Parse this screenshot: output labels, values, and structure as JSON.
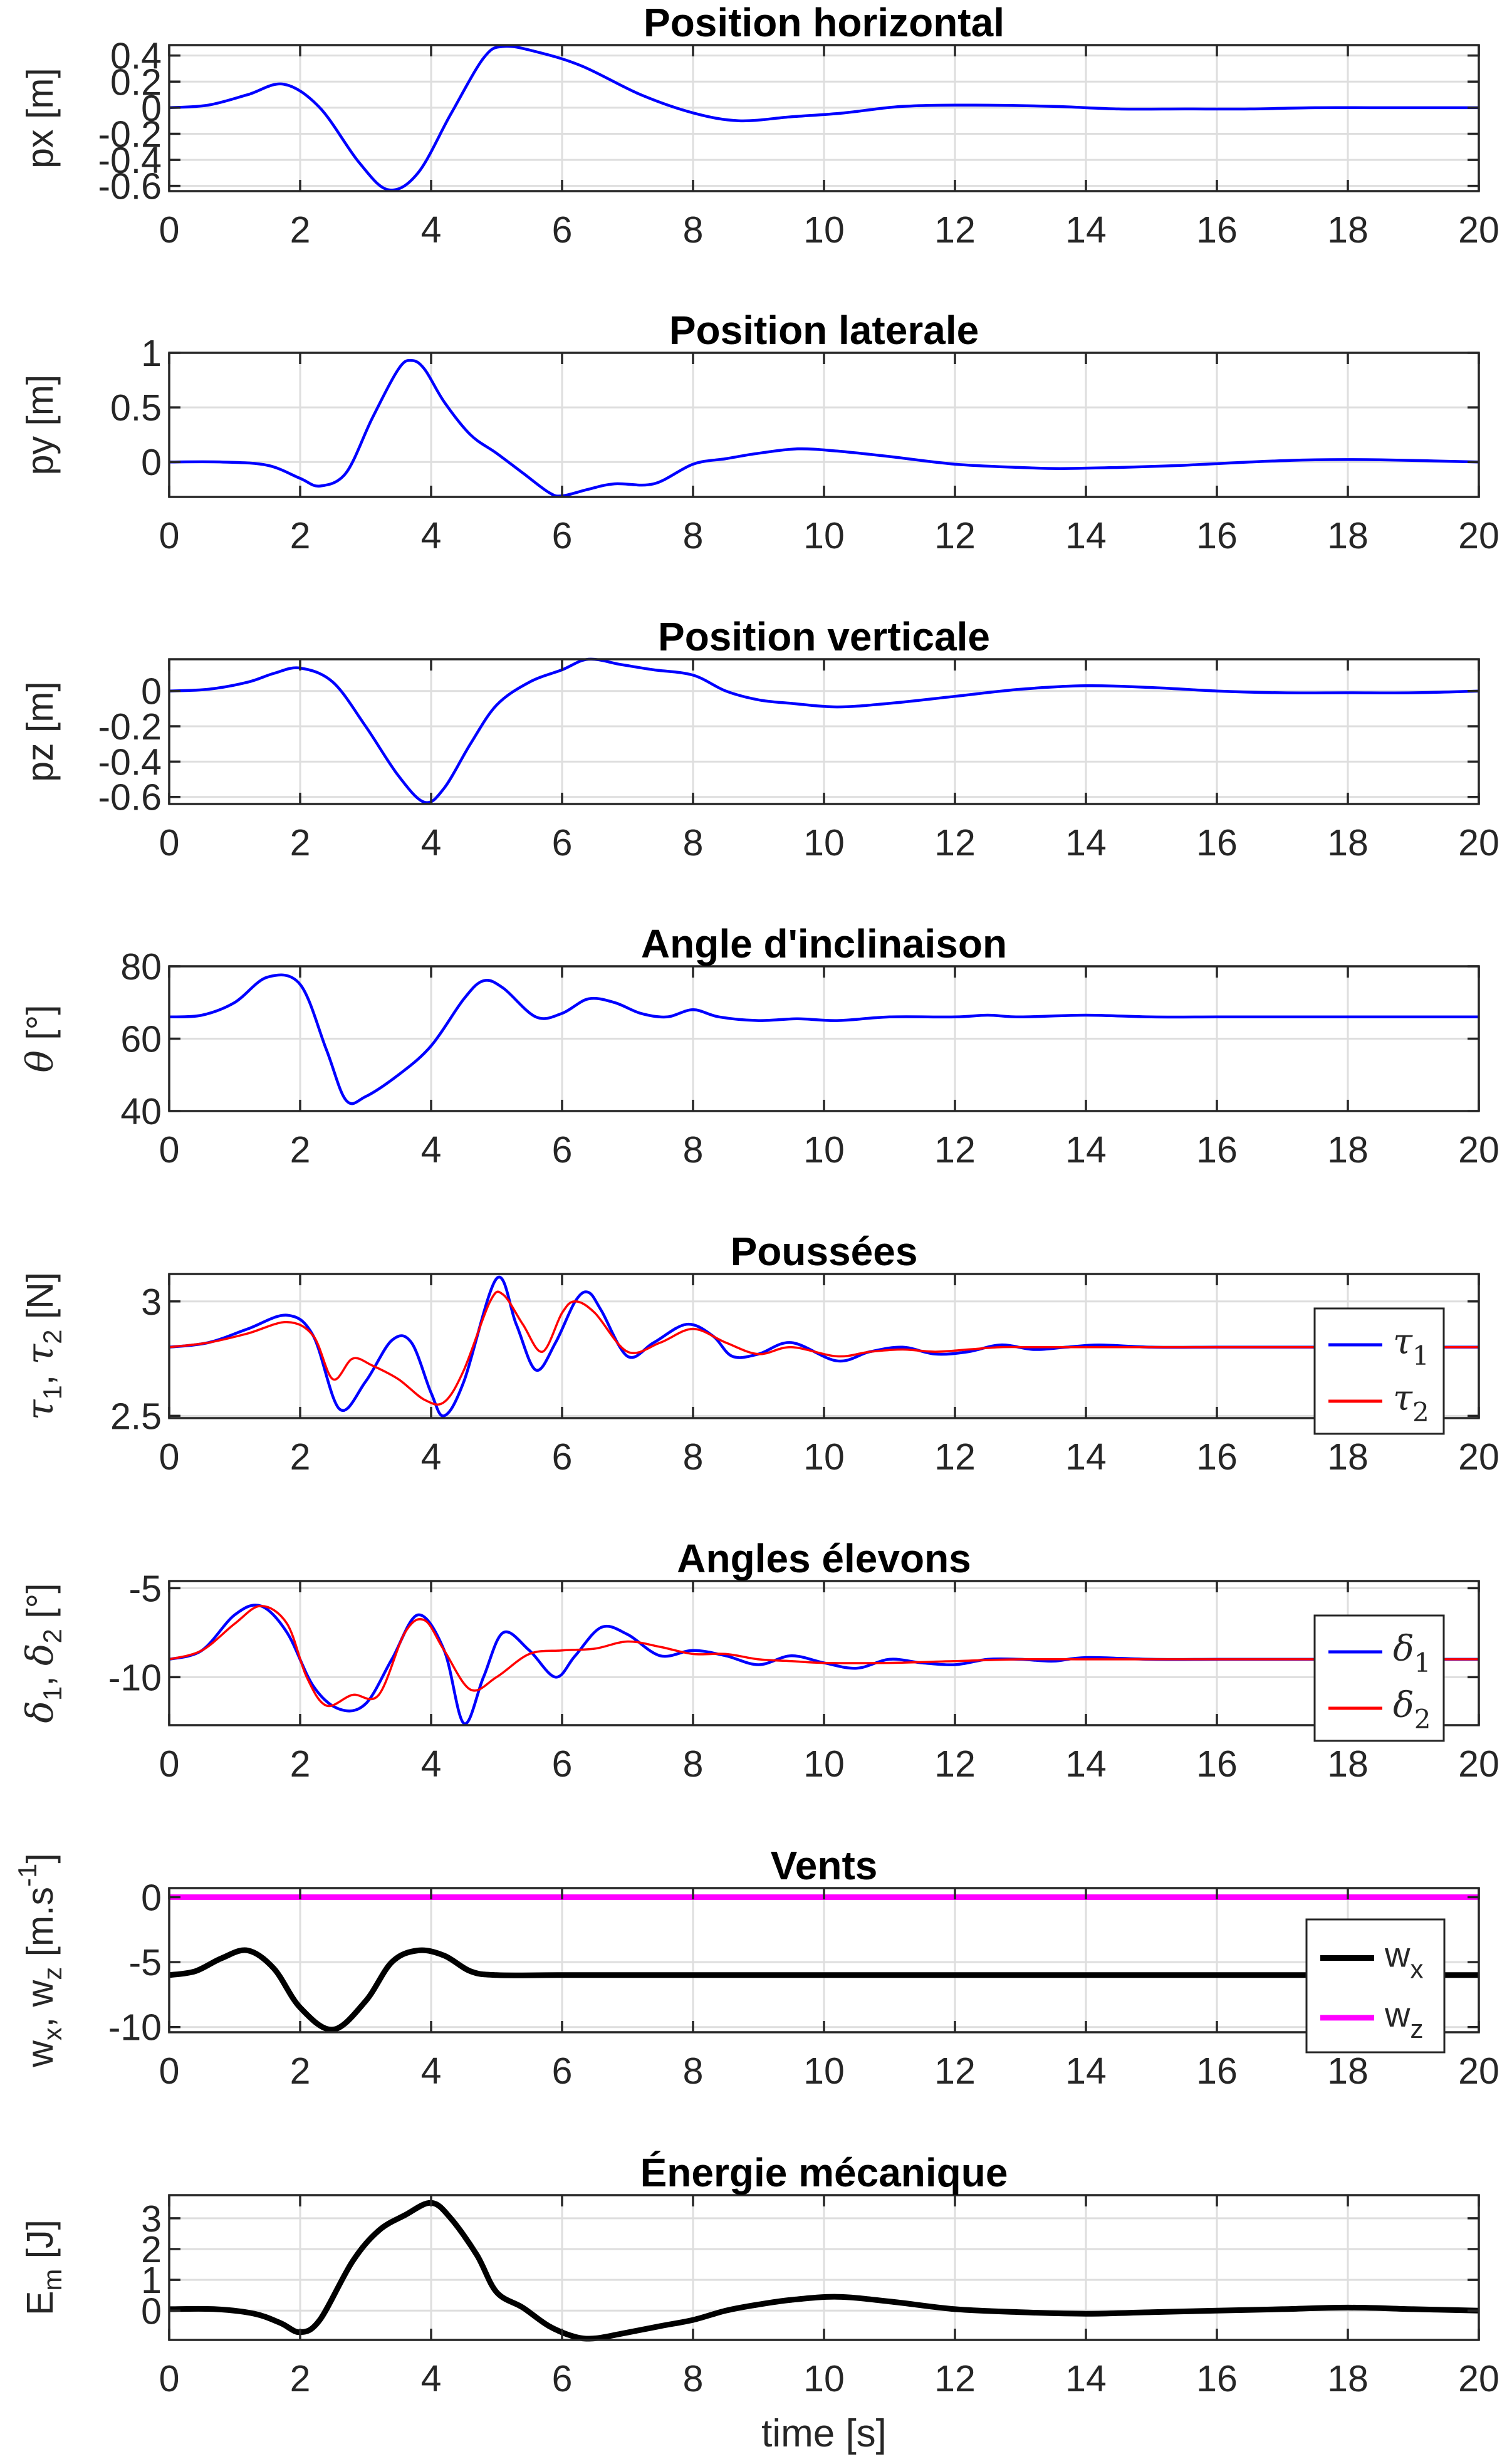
{
  "chart_data": [
    {
      "type": "line",
      "title": "Position horizontal",
      "ylabel": "px [m]",
      "xlabel": "",
      "xlim": [
        0,
        20
      ],
      "ylim": [
        -0.64,
        0.48
      ],
      "xticks": [
        "0",
        "2",
        "4",
        "6",
        "8",
        "10",
        "12",
        "14",
        "16",
        "18",
        "20"
      ],
      "yticks": [
        0.4,
        0.2,
        0,
        -0.2,
        -0.4,
        -0.6
      ],
      "ytick_labels": [
        "0.4",
        "0.2",
        "0",
        "-0.2",
        "-0.4",
        "-0.6"
      ],
      "grid": true,
      "series": [
        {
          "color": "#0000ff",
          "width": 4.5,
          "x": [
            0,
            0.6,
            1.2,
            1.75,
            2.3,
            2.9,
            3.35,
            3.8,
            4.3,
            4.8,
            5.1,
            5.6,
            6.3,
            7.2,
            8.0,
            8.7,
            9.5,
            10.3,
            11.2,
            12.3,
            13.5,
            14.5,
            15.5,
            16.5,
            17.5,
            18.5,
            20
          ],
          "y": [
            0,
            0.02,
            0.1,
            0.18,
            0.0,
            -0.42,
            -0.63,
            -0.5,
            -0.05,
            0.38,
            0.47,
            0.43,
            0.32,
            0.1,
            -0.04,
            -0.1,
            -0.07,
            -0.04,
            0.01,
            0.02,
            0.01,
            -0.01,
            -0.01,
            -0.01,
            0.0,
            0.0,
            0.0
          ]
        }
      ]
    },
    {
      "type": "line",
      "title": "Position laterale",
      "ylabel": "py [m]",
      "xlabel": "",
      "xlim": [
        0,
        20
      ],
      "ylim": [
        -0.32,
        1.0
      ],
      "xticks": [
        "0",
        "2",
        "4",
        "6",
        "8",
        "10",
        "12",
        "14",
        "16",
        "18",
        "20"
      ],
      "yticks": [
        1,
        0.5,
        0
      ],
      "ytick_labels": [
        "1",
        "0.5",
        "0"
      ],
      "grid": true,
      "series": [
        {
          "color": "#0000ff",
          "width": 4.5,
          "x": [
            0,
            0.8,
            1.5,
            2.0,
            2.3,
            2.7,
            3.1,
            3.5,
            3.7,
            3.9,
            4.2,
            4.6,
            5.0,
            5.4,
            5.8,
            6.0,
            6.4,
            6.8,
            7.4,
            8.0,
            8.5,
            9.0,
            9.6,
            10.2,
            11,
            12,
            13,
            13.6,
            14.5,
            15.5,
            16.5,
            17.5,
            18.5,
            20
          ],
          "y": [
            0,
            0,
            -0.03,
            -0.15,
            -0.22,
            -0.1,
            0.4,
            0.85,
            0.93,
            0.85,
            0.55,
            0.25,
            0.08,
            -0.1,
            -0.28,
            -0.31,
            -0.25,
            -0.2,
            -0.2,
            -0.02,
            0.03,
            0.08,
            0.12,
            0.1,
            0.05,
            -0.02,
            -0.05,
            -0.06,
            -0.05,
            -0.03,
            0.0,
            0.02,
            0.02,
            0.0
          ]
        }
      ]
    },
    {
      "type": "line",
      "title": "Position verticale",
      "ylabel": "pz [m]",
      "xlabel": "",
      "xlim": [
        0,
        20
      ],
      "ylim": [
        -0.64,
        0.18
      ],
      "xticks": [
        "0",
        "2",
        "4",
        "6",
        "8",
        "10",
        "12",
        "14",
        "16",
        "18",
        "20"
      ],
      "yticks": [
        0,
        -0.2,
        -0.4,
        -0.6
      ],
      "ytick_labels": [
        "0",
        "-0.2",
        "-0.4",
        "-0.6"
      ],
      "grid": true,
      "series": [
        {
          "color": "#0000ff",
          "width": 4.5,
          "x": [
            0,
            0.6,
            1.2,
            1.6,
            2.0,
            2.5,
            3.0,
            3.5,
            3.9,
            4.2,
            4.6,
            5.0,
            5.5,
            6.0,
            6.4,
            6.9,
            7.4,
            8.0,
            8.5,
            9.0,
            9.5,
            10.2,
            11,
            12,
            13,
            14,
            15,
            16,
            17,
            18,
            19,
            20
          ],
          "y": [
            0,
            0.01,
            0.05,
            0.1,
            0.13,
            0.05,
            -0.2,
            -0.48,
            -0.63,
            -0.55,
            -0.3,
            -0.08,
            0.05,
            0.12,
            0.18,
            0.15,
            0.12,
            0.09,
            0.0,
            -0.05,
            -0.07,
            -0.09,
            -0.07,
            -0.03,
            0.01,
            0.03,
            0.02,
            0.0,
            -0.01,
            -0.01,
            -0.01,
            0.0
          ]
        }
      ]
    },
    {
      "type": "line",
      "title": "Angle d'inclinaison",
      "ylabel": "θ [°]",
      "xlabel": "",
      "xlim": [
        0,
        20
      ],
      "ylim": [
        40,
        80
      ],
      "xticks": [
        "0",
        "2",
        "4",
        "6",
        "8",
        "10",
        "12",
        "14",
        "16",
        "18",
        "20"
      ],
      "yticks": [
        80,
        60,
        40
      ],
      "ytick_labels": [
        "80",
        "60",
        "40"
      ],
      "grid": true,
      "series": [
        {
          "color": "#0000ff",
          "width": 4.5,
          "x": [
            0,
            0.5,
            1.0,
            1.5,
            2.0,
            2.4,
            2.7,
            3.0,
            3.5,
            4.0,
            4.5,
            4.8,
            5.1,
            5.6,
            6.0,
            6.4,
            6.8,
            7.2,
            7.6,
            8.0,
            8.4,
            9.0,
            9.6,
            10.2,
            11,
            12,
            12.5,
            13,
            14,
            15,
            16,
            17,
            18,
            19,
            20
          ],
          "y": [
            66,
            66.5,
            70,
            77,
            75,
            57,
            43,
            44,
            50,
            58,
            71,
            76,
            74,
            66,
            67,
            71,
            70,
            67,
            66,
            68,
            66,
            65,
            65.5,
            65,
            66,
            66,
            66.5,
            66,
            66.5,
            66,
            66,
            66,
            66,
            66,
            66
          ]
        }
      ]
    },
    {
      "type": "line",
      "title": "Poussées",
      "ylabel": "τ1, τ2 [N]",
      "xlabel": "",
      "xlim": [
        0,
        20
      ],
      "ylim": [
        2.49,
        3.12
      ],
      "xticks": [
        "0",
        "2",
        "4",
        "6",
        "8",
        "10",
        "12",
        "14",
        "16",
        "18",
        "20"
      ],
      "yticks": [
        3,
        2.5
      ],
      "ytick_labels": [
        "3",
        "2.5"
      ],
      "grid": true,
      "legend": {
        "position": "bottom-right",
        "entries": [
          "τ1",
          "τ2"
        ]
      },
      "series": [
        {
          "name": "τ1",
          "color": "#0000ff",
          "width": 4.5,
          "x": [
            0,
            0.6,
            1.2,
            1.8,
            2.2,
            2.6,
            3.0,
            3.4,
            3.7,
            4.0,
            4.2,
            4.5,
            5.0,
            5.3,
            5.6,
            5.9,
            6.2,
            6.4,
            6.6,
            7.0,
            7.4,
            7.9,
            8.3,
            8.6,
            9.0,
            9.5,
            10.2,
            10.7,
            11.2,
            11.7,
            12.2,
            12.7,
            13.2,
            13.7,
            14.2,
            15,
            16,
            17,
            18,
            19,
            20
          ],
          "y": [
            2.8,
            2.82,
            2.88,
            2.94,
            2.85,
            2.53,
            2.65,
            2.83,
            2.82,
            2.6,
            2.5,
            2.65,
            3.1,
            2.9,
            2.7,
            2.82,
            3.0,
            3.04,
            2.96,
            2.76,
            2.82,
            2.9,
            2.85,
            2.76,
            2.77,
            2.82,
            2.74,
            2.78,
            2.8,
            2.77,
            2.78,
            2.81,
            2.79,
            2.8,
            2.81,
            2.8,
            2.8,
            2.8,
            2.8,
            2.8,
            2.8
          ]
        },
        {
          "name": "τ2",
          "color": "#ff0000",
          "width": 3.5,
          "x": [
            0,
            0.6,
            1.2,
            1.8,
            2.2,
            2.5,
            2.8,
            3.1,
            3.5,
            3.9,
            4.2,
            4.5,
            4.9,
            5.1,
            5.4,
            5.7,
            6.0,
            6.2,
            6.5,
            7.0,
            7.5,
            8.0,
            8.5,
            9.0,
            9.5,
            10.2,
            10.7,
            11.2,
            11.7,
            12.2,
            12.7,
            13.2,
            14,
            15,
            16,
            17,
            18,
            19,
            20
          ],
          "y": [
            2.8,
            2.82,
            2.86,
            2.91,
            2.85,
            2.66,
            2.75,
            2.72,
            2.66,
            2.57,
            2.56,
            2.7,
            3.0,
            3.03,
            2.9,
            2.78,
            2.95,
            3.0,
            2.95,
            2.78,
            2.82,
            2.88,
            2.82,
            2.77,
            2.8,
            2.76,
            2.78,
            2.79,
            2.78,
            2.79,
            2.8,
            2.8,
            2.8,
            2.8,
            2.8,
            2.8,
            2.8,
            2.8,
            2.8
          ]
        }
      ]
    },
    {
      "type": "line",
      "title": "Angles élevons",
      "ylabel": "δ1, δ2 [°]",
      "xlabel": "",
      "xlim": [
        0,
        20
      ],
      "ylim": [
        -12.7,
        -4.6
      ],
      "xticks": [
        "0",
        "2",
        "4",
        "6",
        "8",
        "10",
        "12",
        "14",
        "16",
        "18",
        "20"
      ],
      "yticks": [
        -5,
        -10
      ],
      "ytick_labels": [
        "-5",
        "-10"
      ],
      "grid": true,
      "legend": {
        "position": "bottom-right",
        "entries": [
          "δ1",
          "δ2"
        ]
      },
      "series": [
        {
          "name": "δ1",
          "color": "#0000ff",
          "width": 4.5,
          "x": [
            0,
            0.5,
            1.0,
            1.4,
            1.8,
            2.2,
            2.6,
            3.0,
            3.4,
            3.8,
            4.2,
            4.5,
            4.8,
            5.1,
            5.5,
            5.9,
            6.2,
            6.6,
            7.0,
            7.5,
            8.0,
            8.5,
            9.0,
            9.5,
            10.0,
            10.5,
            11.0,
            11.5,
            12.0,
            12.5,
            13.0,
            13.5,
            14.0,
            15,
            16,
            17,
            18,
            19,
            20
          ],
          "y": [
            -9,
            -8.5,
            -6.5,
            -6.0,
            -7.5,
            -10.5,
            -11.8,
            -11.5,
            -9,
            -6.5,
            -8.5,
            -12.6,
            -10,
            -7.5,
            -8.5,
            -10,
            -8.8,
            -7.2,
            -7.6,
            -8.8,
            -8.5,
            -8.8,
            -9.3,
            -8.8,
            -9.2,
            -9.5,
            -9,
            -9.2,
            -9.3,
            -9,
            -9,
            -9.1,
            -8.9,
            -9,
            -9,
            -9,
            -9,
            -9,
            -9
          ]
        },
        {
          "name": "δ2",
          "color": "#ff0000",
          "width": 3.5,
          "x": [
            0,
            0.5,
            1.0,
            1.4,
            1.8,
            2.1,
            2.4,
            2.8,
            3.2,
            3.6,
            3.9,
            4.2,
            4.6,
            5.0,
            5.5,
            6.0,
            6.5,
            7.0,
            7.5,
            8.0,
            8.5,
            9.0,
            9.5,
            10,
            11,
            12,
            13,
            14,
            15,
            16,
            17,
            18,
            19,
            20
          ],
          "y": [
            -9,
            -8.5,
            -7,
            -6,
            -7,
            -10,
            -11.6,
            -11,
            -11,
            -7.5,
            -6.8,
            -8.5,
            -10.7,
            -10,
            -8.7,
            -8.5,
            -8.4,
            -8.0,
            -8.3,
            -8.7,
            -8.7,
            -9.0,
            -9.1,
            -9.2,
            -9.2,
            -9.1,
            -9.0,
            -9.0,
            -9.0,
            -9.0,
            -9.0,
            -9.0,
            -9.0,
            -9.0
          ]
        }
      ]
    },
    {
      "type": "line",
      "title": "Vents",
      "ylabel": "wx, wz [m.s-1]",
      "xlabel": "",
      "xlim": [
        0,
        20
      ],
      "ylim": [
        -10.4,
        0.7
      ],
      "xticks": [
        "0",
        "2",
        "4",
        "6",
        "8",
        "10",
        "12",
        "14",
        "16",
        "18",
        "20"
      ],
      "yticks": [
        0,
        -5,
        -10
      ],
      "ytick_labels": [
        "0",
        "-5",
        "-10"
      ],
      "grid": true,
      "legend": {
        "position": "bottom-right",
        "entries": [
          "wx",
          "wz"
        ]
      },
      "series": [
        {
          "name": "wx",
          "color": "#000000",
          "width": 9,
          "x": [
            0,
            0.4,
            0.8,
            1.2,
            1.6,
            2.0,
            2.5,
            3.0,
            3.4,
            3.8,
            4.2,
            4.6,
            5.0,
            6,
            8,
            10,
            12,
            14,
            16,
            18,
            20
          ],
          "y": [
            -6,
            -5.7,
            -4.7,
            -4.1,
            -5.5,
            -8.5,
            -10.2,
            -8,
            -5,
            -4.1,
            -4.5,
            -5.7,
            -6,
            -6,
            -6,
            -6,
            -6,
            -6,
            -6,
            -6,
            -6
          ]
        },
        {
          "name": "wz",
          "color": "#ff00ff",
          "width": 9,
          "x": [
            0,
            20
          ],
          "y": [
            0,
            0
          ]
        }
      ]
    },
    {
      "type": "line",
      "title": "Énergie mécanique",
      "ylabel": "Em [J]",
      "xlabel": "time [s]",
      "xlim": [
        0,
        20
      ],
      "ylim": [
        -0.95,
        3.75
      ],
      "xticks": [
        "0",
        "2",
        "4",
        "6",
        "8",
        "10",
        "12",
        "14",
        "16",
        "18",
        "20"
      ],
      "yticks": [
        3,
        2,
        1,
        0
      ],
      "ytick_labels": [
        "3",
        "2",
        "1",
        "0"
      ],
      "grid": true,
      "series": [
        {
          "name": "",
          "color": "#000000",
          "width": 9,
          "x": [
            0,
            0.7,
            1.3,
            1.7,
            2.0,
            2.3,
            2.8,
            3.2,
            3.6,
            4.0,
            4.3,
            4.7,
            5.0,
            5.4,
            5.8,
            6.2,
            6.5,
            6.9,
            7.5,
            8.0,
            8.5,
            9.0,
            9.5,
            10.2,
            11,
            12,
            13,
            14,
            15,
            16,
            17,
            18,
            19,
            20
          ],
          "y": [
            0.05,
            0.05,
            -0.1,
            -0.4,
            -0.7,
            -0.3,
            1.6,
            2.6,
            3.1,
            3.5,
            3.0,
            1.8,
            0.6,
            0.1,
            -0.5,
            -0.85,
            -0.9,
            -0.75,
            -0.5,
            -0.3,
            0.0,
            0.2,
            0.35,
            0.45,
            0.3,
            0.05,
            -0.05,
            -0.1,
            -0.05,
            0.0,
            0.05,
            0.1,
            0.05,
            0.0
          ]
        }
      ]
    }
  ]
}
